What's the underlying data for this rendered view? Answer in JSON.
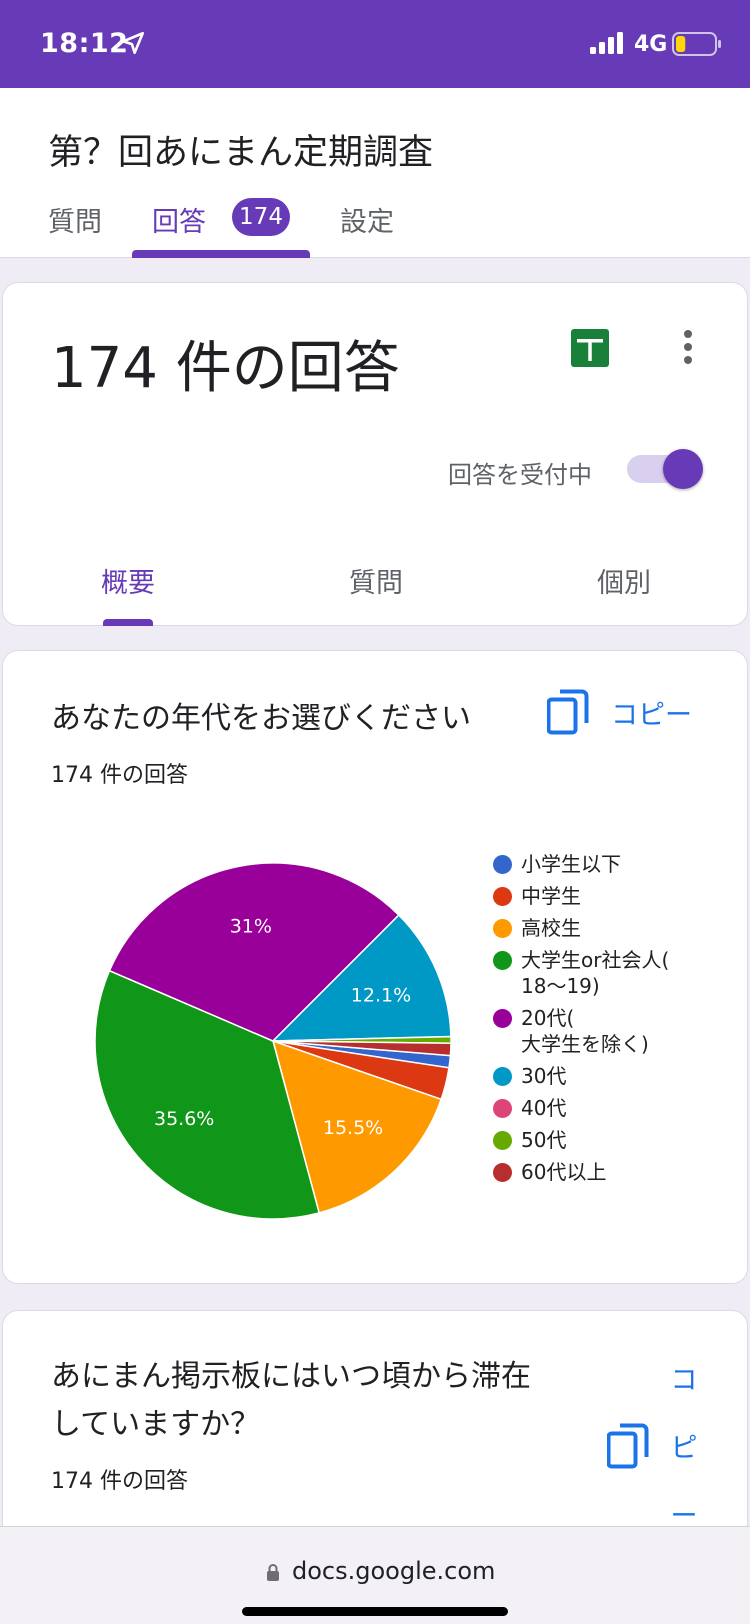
{
  "status_bar": {
    "time": "18:12",
    "network": "4G",
    "battery_level": 0.25
  },
  "form": {
    "title": "第？回あにまん定期調査",
    "tabs": [
      {
        "label": "質問"
      },
      {
        "label": "回答",
        "badge": "174"
      },
      {
        "label": "設定"
      }
    ]
  },
  "summary": {
    "count_label": "174 件の回答",
    "accepting_label": "回答を受付中",
    "accepting": true,
    "subtabs": [
      "概要",
      "質問",
      "個別"
    ]
  },
  "question1": {
    "title": "あなたの年代をお選びください",
    "copy_label": "コピー",
    "response_count": "174 件の回答",
    "chart_data": {
      "type": "pie",
      "labels": [
        "小学生以下",
        "中学生",
        "高校生",
        "大学生or社会人(\n18〜19)",
        "20代(\n大学生を除く)",
        "30代",
        "40代",
        "50代",
        "60代以上"
      ],
      "values": [
        1.1,
        2.9,
        15.5,
        35.6,
        31.0,
        12.1,
        0.0,
        0.6,
        1.1
      ],
      "colors": [
        "#3366cc",
        "#dc3912",
        "#ff9900",
        "#109618",
        "#990099",
        "#0099c6",
        "#dd4477",
        "#66aa00",
        "#b82e2e"
      ],
      "slice_labels": [
        "",
        "",
        "15.5%",
        "35.6%",
        "31%",
        "12.1%",
        "",
        "",
        ""
      ],
      "legend_position": "right"
    }
  },
  "question2": {
    "title": "あにまん掲示板にはいつ頃から滞在していますか？",
    "copy_label": "コピー",
    "response_count": "174 件の回答"
  },
  "browser": {
    "url": "docs.google.com"
  },
  "colors": {
    "accent": "#673ab7",
    "link": "#1a73e8",
    "sheets_green": "#188038"
  }
}
